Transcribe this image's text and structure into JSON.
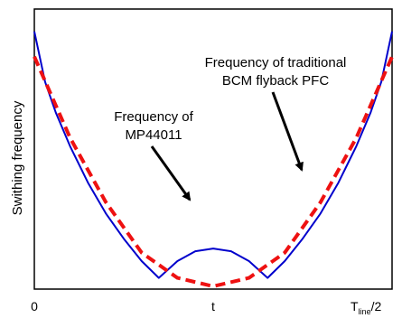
{
  "chart_data": {
    "type": "line",
    "ylabel": "Swithing frequency",
    "x_ticks": [
      {
        "value": 0,
        "label": "0"
      },
      {
        "value": 0.5,
        "label": "t"
      },
      {
        "value": 1,
        "label": "T",
        "sub": "line",
        "suffix": "/2"
      }
    ],
    "xlim": [
      0,
      1
    ],
    "ylim": [
      0,
      1
    ],
    "grid": false,
    "series": [
      {
        "name": "Frequency of MP44011",
        "color": "#0000cc",
        "style": "solid",
        "x": [
          0,
          0.03,
          0.06,
          0.1,
          0.15,
          0.2,
          0.25,
          0.3,
          0.348,
          0.4,
          0.45,
          0.5,
          0.55,
          0.6,
          0.652,
          0.7,
          0.75,
          0.8,
          0.85,
          0.9,
          0.94,
          0.97,
          1
        ],
        "y": [
          0.92,
          0.74,
          0.63,
          0.51,
          0.38,
          0.27,
          0.18,
          0.1,
          0.04,
          0.1,
          0.135,
          0.145,
          0.135,
          0.1,
          0.04,
          0.1,
          0.18,
          0.27,
          0.38,
          0.51,
          0.63,
          0.74,
          0.92
        ]
      },
      {
        "name": "Frequency of traditional BCM flyback PFC",
        "color": "#ee1111",
        "style": "dashed",
        "x": [
          0,
          0.1,
          0.2,
          0.3,
          0.4,
          0.5,
          0.6,
          0.7,
          0.8,
          0.9,
          1
        ],
        "y": [
          0.83,
          0.54,
          0.31,
          0.13,
          0.04,
          0.01,
          0.04,
          0.13,
          0.31,
          0.54,
          0.83
        ]
      }
    ],
    "annotations": [
      {
        "lines": [
          "Frequency of traditional",
          "BCM flyback PFC"
        ],
        "series": 1
      },
      {
        "lines": [
          "Frequency of",
          "MP44011"
        ],
        "series": 0
      }
    ]
  }
}
